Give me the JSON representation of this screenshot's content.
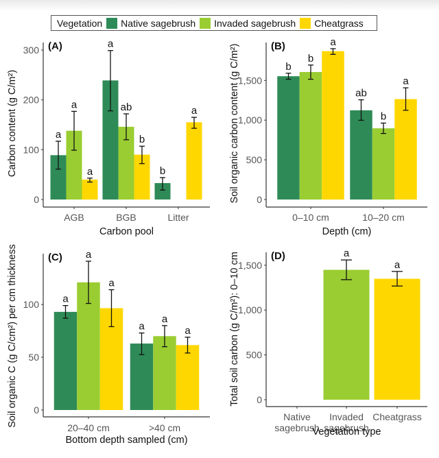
{
  "legend": {
    "title": "Vegetation",
    "items": [
      {
        "label": "Native sagebrush",
        "color": "#2E8B57"
      },
      {
        "label": "Invaded sagebrush",
        "color": "#9ACD32"
      },
      {
        "label": "Cheatgrass",
        "color": "#FFD700"
      }
    ]
  },
  "chart_data": [
    {
      "type": "bar",
      "panel": "(A)",
      "xlabel": "Carbon pool",
      "ylabel": "Carbon content (g C/m²)",
      "ylim": [
        0,
        300
      ],
      "yticks": [
        0,
        100,
        200,
        300
      ],
      "ytick_labels": [
        "0",
        "100",
        "200",
        "300"
      ],
      "categories": [
        "AGB",
        "BGB",
        "Litter"
      ],
      "series": [
        {
          "name": "Native sagebrush",
          "values": [
            89,
            239,
            33
          ],
          "err_low": [
            61,
            178,
            19
          ],
          "err_high": [
            117,
            299,
            44
          ],
          "letters": [
            "a",
            "a",
            "b"
          ]
        },
        {
          "name": "Invaded sagebrush",
          "values": [
            138,
            146,
            null
          ],
          "err_low": [
            99,
            120,
            null
          ],
          "err_high": [
            177,
            172,
            null
          ],
          "letters": [
            "a",
            "ab",
            null
          ]
        },
        {
          "name": "Cheatgrass",
          "values": [
            40,
            90,
            155
          ],
          "err_low": [
            35,
            72,
            143
          ],
          "err_high": [
            43,
            107,
            165
          ],
          "letters": [
            "a",
            "b",
            "a"
          ]
        }
      ],
      "grid": false
    },
    {
      "type": "bar",
      "panel": "(B)",
      "xlabel": "Depth (cm)",
      "ylabel": "Soil organic carbon content (g C/m²)",
      "ylim": [
        0,
        1900
      ],
      "yticks": [
        0,
        500,
        1000,
        1500
      ],
      "ytick_labels": [
        "0",
        "500",
        "1,000",
        "1,500"
      ],
      "categories": [
        "0–10 cm",
        "10–20 cm"
      ],
      "series": [
        {
          "name": "Native sagebrush",
          "values": [
            1553,
            1124
          ],
          "err_low": [
            1515,
            998
          ],
          "err_high": [
            1591,
            1256
          ],
          "letters": [
            "b",
            "ab"
          ]
        },
        {
          "name": "Invaded sagebrush",
          "values": [
            1606,
            897
          ],
          "err_low": [
            1515,
            832
          ],
          "err_high": [
            1694,
            963
          ],
          "letters": [
            "b",
            "b"
          ]
        },
        {
          "name": "Cheatgrass",
          "values": [
            1869,
            1265
          ],
          "err_low": [
            1828,
            1124
          ],
          "err_high": [
            1900,
            1407
          ],
          "letters": [
            "a",
            "a"
          ]
        }
      ],
      "grid": false
    },
    {
      "type": "bar",
      "panel": "(C)",
      "xlabel": "Bottom depth sampled (cm)",
      "ylabel": "Soil organic C (g C/cm²) per cm thickness",
      "ylim": [
        0,
        141
      ],
      "yticks": [
        0,
        50,
        100
      ],
      "ytick_labels": [
        "0",
        "50",
        "100"
      ],
      "categories": [
        "20–40 cm",
        ">40 cm"
      ],
      "series": [
        {
          "name": "Native sagebrush",
          "values": [
            93,
            63
          ],
          "err_low": [
            87,
            52.5
          ],
          "err_high": [
            99,
            73
          ],
          "letters": [
            "a",
            "a"
          ]
        },
        {
          "name": "Invaded sagebrush",
          "values": [
            121,
            70
          ],
          "err_low": [
            101,
            60
          ],
          "err_high": [
            141,
            80
          ],
          "letters": [
            "a",
            "a"
          ]
        },
        {
          "name": "Cheatgrass",
          "values": [
            96.5,
            61.5
          ],
          "err_low": [
            79,
            54
          ],
          "err_high": [
            114,
            69
          ],
          "letters": [
            "a",
            "a"
          ]
        }
      ],
      "grid": false
    },
    {
      "type": "bar",
      "panel": "(D)",
      "xlabel": "Vegetation type",
      "ylabel": "Total soil carbon (g C/m²): 0–10 cm",
      "ylim": [
        0,
        1560
      ],
      "yticks": [
        0,
        500,
        1000,
        1500
      ],
      "ytick_labels": [
        "0",
        "500",
        "1,000",
        "1,500"
      ],
      "categories": [
        "Native sagebrush",
        "Invaded sagebrush",
        "Cheatgrass"
      ],
      "category_lines": [
        [
          "Native",
          "sagebrush"
        ],
        [
          "Invaded",
          "sagebrush"
        ],
        [
          "Cheatgrass"
        ]
      ],
      "values": [
        null,
        1449,
        1349
      ],
      "err_low": [
        null,
        1339,
        1268
      ],
      "err_high": [
        null,
        1559,
        1431
      ],
      "letters": [
        null,
        "a",
        "a"
      ],
      "colors": [
        "#2E8B57",
        "#9ACD32",
        "#FFD700"
      ],
      "grid": false
    }
  ]
}
